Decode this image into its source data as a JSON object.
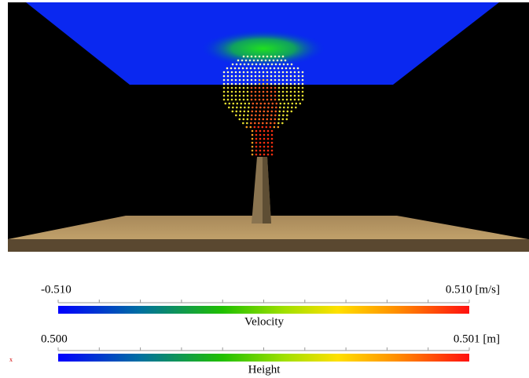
{
  "axis_indicator": "x",
  "colorbars": [
    {
      "min_label": "-0.510",
      "max_label": "0.510 [m/s]",
      "title": "Velocity"
    },
    {
      "min_label": "0.500",
      "max_label": "0.501 [m]",
      "title": "Height"
    }
  ]
}
